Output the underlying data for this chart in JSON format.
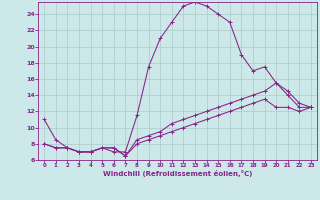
{
  "background_color": "#cce8e8",
  "line_color": "#882288",
  "grid_color": "#aacccc",
  "ylim": [
    6,
    25.5
  ],
  "xlim": [
    -0.5,
    23.5
  ],
  "yticks": [
    6,
    8,
    10,
    12,
    14,
    16,
    18,
    20,
    22,
    24
  ],
  "xticks": [
    0,
    1,
    2,
    3,
    4,
    5,
    6,
    7,
    8,
    9,
    10,
    11,
    12,
    13,
    14,
    15,
    16,
    17,
    18,
    19,
    20,
    21,
    22,
    23
  ],
  "xlabel": "Windchill (Refroidissement éolien,°C)",
  "line1_x": [
    0,
    1,
    2,
    3,
    4,
    5,
    6,
    7,
    8,
    9,
    10,
    11,
    12,
    13,
    14,
    15,
    16,
    17,
    18,
    19,
    20,
    21,
    22,
    23
  ],
  "line1_y": [
    11.0,
    8.5,
    7.5,
    7.0,
    7.0,
    7.5,
    7.0,
    7.0,
    11.5,
    17.5,
    21.0,
    23.0,
    25.0,
    25.5,
    25.0,
    24.0,
    23.0,
    19.0,
    17.0,
    17.5,
    15.5,
    14.0,
    12.5,
    12.5
  ],
  "line2_x": [
    0,
    1,
    2,
    3,
    4,
    5,
    6,
    7,
    8,
    9,
    10,
    11,
    12,
    13,
    14,
    15,
    16,
    17,
    18,
    19,
    20,
    21,
    22,
    23
  ],
  "line2_y": [
    8.0,
    7.5,
    7.5,
    7.0,
    7.0,
    7.5,
    7.5,
    6.5,
    8.5,
    9.0,
    9.5,
    10.5,
    11.0,
    11.5,
    12.0,
    12.5,
    13.0,
    13.5,
    14.0,
    14.5,
    15.5,
    14.5,
    13.0,
    12.5
  ],
  "line3_x": [
    0,
    1,
    2,
    3,
    4,
    5,
    6,
    7,
    8,
    9,
    10,
    11,
    12,
    13,
    14,
    15,
    16,
    17,
    18,
    19,
    20,
    21,
    22,
    23
  ],
  "line3_y": [
    8.0,
    7.5,
    7.5,
    7.0,
    7.0,
    7.5,
    7.5,
    6.5,
    8.0,
    8.5,
    9.0,
    9.5,
    10.0,
    10.5,
    11.0,
    11.5,
    12.0,
    12.5,
    13.0,
    13.5,
    12.5,
    12.5,
    12.0,
    12.5
  ]
}
